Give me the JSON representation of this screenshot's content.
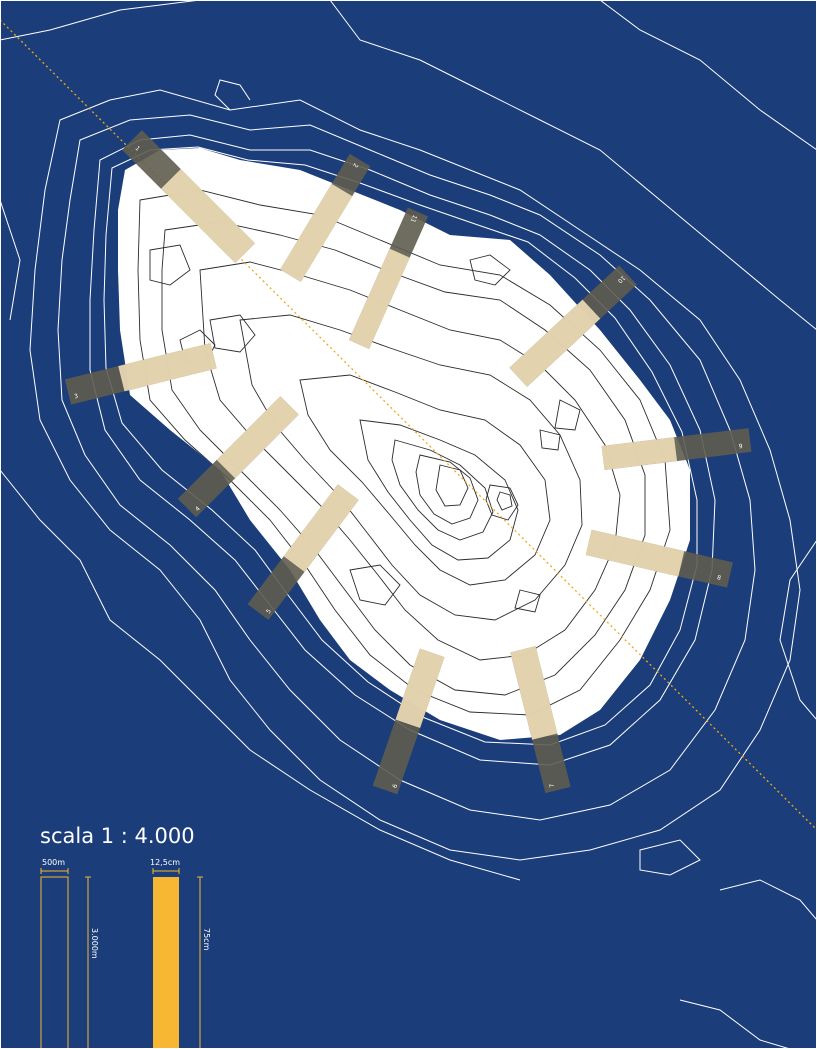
{
  "map": {
    "title": "scala 1 : 4.000",
    "colors": {
      "sea": "#1b3d7a",
      "land": "#ffffff",
      "contour_sea": "#ffffff",
      "contour_land": "#2b2b2b",
      "strip_land": "#f7e4bc",
      "strip_sea": "#5f5c4f",
      "axis": "#f2a817",
      "accent": "#f7b733"
    },
    "strips": [
      {
        "label": "1"
      },
      {
        "label": "2"
      },
      {
        "label": "3"
      },
      {
        "label": "4"
      },
      {
        "label": "5"
      },
      {
        "label": "6"
      },
      {
        "label": "7"
      },
      {
        "label": "8"
      },
      {
        "label": "9"
      },
      {
        "label": "10"
      },
      {
        "label": "11"
      }
    ],
    "scale_bars": {
      "real": {
        "width_label": "500m",
        "height_label": "3.000m"
      },
      "model": {
        "width_label": "12,5cm",
        "height_label": "75cm"
      }
    }
  }
}
